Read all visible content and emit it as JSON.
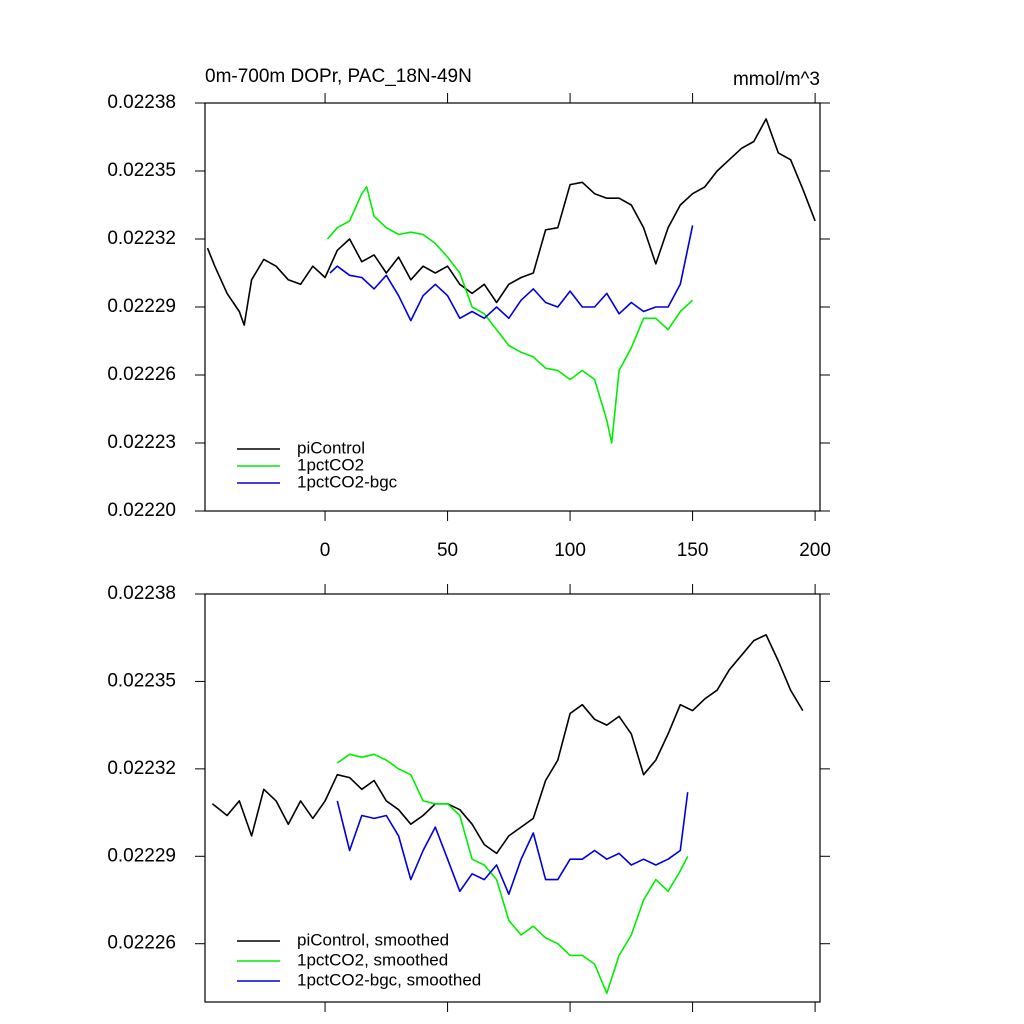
{
  "chart_data": [
    {
      "type": "line",
      "title": "0m-700m DOPr, PAC_18N-49N",
      "units": "mmol/m^3",
      "xlim": [
        -49,
        202
      ],
      "xticks": [
        0,
        50,
        100,
        150,
        200
      ],
      "ylim": [
        0.0222,
        0.02238
      ],
      "yticks": [
        {
          "value": 0.0222,
          "label": "0.02220"
        },
        0.02223,
        0.02226,
        0.02229,
        0.02232,
        0.02235,
        0.02238
      ],
      "legend": "lower left",
      "series": [
        {
          "name": "piControl",
          "color": "#000000",
          "x": [
            -48,
            -45,
            -40,
            -35,
            -33,
            -30,
            -25,
            -20,
            -15,
            -10,
            -5,
            0,
            5,
            10,
            15,
            20,
            25,
            30,
            35,
            40,
            45,
            50,
            55,
            60,
            65,
            70,
            75,
            80,
            85,
            90,
            95,
            100,
            105,
            110,
            115,
            120,
            125,
            130,
            135,
            140,
            145,
            150,
            155,
            160,
            165,
            170,
            175,
            180,
            185,
            190,
            195,
            200
          ],
          "values": [
            0.022316,
            0.022308,
            0.022296,
            0.022288,
            0.022282,
            0.022302,
            0.022311,
            0.022308,
            0.022302,
            0.0223,
            0.022308,
            0.022303,
            0.022315,
            0.02232,
            0.02231,
            0.022313,
            0.022305,
            0.022312,
            0.022302,
            0.022308,
            0.022305,
            0.022308,
            0.0223,
            0.022296,
            0.0223,
            0.022292,
            0.0223,
            0.022303,
            0.022305,
            0.022324,
            0.022325,
            0.022344,
            0.022345,
            0.02234,
            0.022338,
            0.022338,
            0.022335,
            0.022325,
            0.022309,
            0.022325,
            0.022335,
            0.02234,
            0.022343,
            0.02235,
            0.022355,
            0.02236,
            0.022363,
            0.022373,
            0.022358,
            0.022355,
            0.022342,
            0.022328
          ]
        },
        {
          "name": "1pctCO2",
          "color": "#00ee00",
          "x": [
            1,
            5,
            10,
            15,
            17,
            20,
            25,
            30,
            35,
            40,
            45,
            50,
            55,
            60,
            65,
            70,
            75,
            80,
            85,
            90,
            95,
            100,
            105,
            110,
            115,
            117,
            120,
            125,
            130,
            135,
            140,
            145,
            150
          ],
          "values": [
            0.02232,
            0.022325,
            0.022328,
            0.02234,
            0.022343,
            0.02233,
            0.022325,
            0.022322,
            0.022323,
            0.022322,
            0.022318,
            0.022312,
            0.022305,
            0.02229,
            0.022287,
            0.02228,
            0.022273,
            0.02227,
            0.022268,
            0.022263,
            0.022262,
            0.022258,
            0.022262,
            0.022258,
            0.02224,
            0.02223,
            0.022262,
            0.022272,
            0.022285,
            0.022285,
            0.02228,
            0.022288,
            0.022293
          ]
        },
        {
          "name": "1pctCO2-bgc",
          "color": "#0000dd",
          "x": [
            2,
            5,
            10,
            15,
            20,
            25,
            30,
            35,
            40,
            45,
            50,
            55,
            60,
            65,
            70,
            75,
            80,
            85,
            90,
            95,
            100,
            105,
            110,
            115,
            120,
            125,
            130,
            135,
            140,
            145,
            150
          ],
          "values": [
            0.022305,
            0.022308,
            0.022304,
            0.022303,
            0.022298,
            0.022304,
            0.022295,
            0.022284,
            0.022295,
            0.0223,
            0.022295,
            0.022285,
            0.022288,
            0.022285,
            0.02229,
            0.022285,
            0.022293,
            0.022298,
            0.022292,
            0.02229,
            0.022297,
            0.02229,
            0.02229,
            0.022296,
            0.022287,
            0.022292,
            0.022288,
            0.02229,
            0.02229,
            0.0223,
            0.022326
          ]
        }
      ]
    },
    {
      "type": "line",
      "xlim": [
        -49,
        202
      ],
      "ylim": [
        0.02224,
        0.02238
      ],
      "yticks": [
        0.02226,
        0.02229,
        0.02232,
        0.02235,
        0.02238
      ],
      "legend": "lower left",
      "series": [
        {
          "name": "piControl, smoothed",
          "color": "#000000",
          "x": [
            -46,
            -40,
            -35,
            -30,
            -25,
            -20,
            -15,
            -10,
            -5,
            0,
            5,
            10,
            15,
            20,
            25,
            30,
            35,
            40,
            45,
            50,
            55,
            60,
            65,
            70,
            75,
            80,
            85,
            90,
            95,
            100,
            105,
            110,
            115,
            120,
            125,
            130,
            135,
            140,
            145,
            150,
            155,
            160,
            165,
            170,
            175,
            180,
            185,
            190,
            195
          ],
          "values": [
            0.022308,
            0.022304,
            0.022309,
            0.022297,
            0.022313,
            0.022309,
            0.022301,
            0.022309,
            0.022303,
            0.022309,
            0.022318,
            0.022317,
            0.022313,
            0.022316,
            0.022309,
            0.022306,
            0.022301,
            0.022304,
            0.022308,
            0.022308,
            0.022306,
            0.022301,
            0.022294,
            0.022291,
            0.022297,
            0.0223,
            0.022303,
            0.022316,
            0.022323,
            0.022339,
            0.022342,
            0.022337,
            0.022335,
            0.022338,
            0.022332,
            0.022318,
            0.022323,
            0.022332,
            0.022342,
            0.02234,
            0.022344,
            0.022347,
            0.022354,
            0.022359,
            0.022364,
            0.022366,
            0.022357,
            0.022347,
            0.02234
          ]
        },
        {
          "name": "1pctCO2, smoothed",
          "color": "#00ee00",
          "x": [
            5,
            10,
            15,
            20,
            25,
            30,
            35,
            40,
            45,
            50,
            55,
            60,
            65,
            70,
            75,
            80,
            85,
            90,
            95,
            100,
            105,
            110,
            115,
            120,
            125,
            130,
            135,
            140,
            145,
            148
          ],
          "values": [
            0.022322,
            0.022325,
            0.022324,
            0.022325,
            0.022323,
            0.02232,
            0.022318,
            0.022309,
            0.022308,
            0.022308,
            0.022304,
            0.022289,
            0.022287,
            0.022282,
            0.022268,
            0.022263,
            0.022266,
            0.022262,
            0.02226,
            0.022256,
            0.022256,
            0.022253,
            0.022243,
            0.022256,
            0.022263,
            0.022275,
            0.022282,
            0.022278,
            0.022285,
            0.02229
          ]
        },
        {
          "name": "1pctCO2-bgc, smoothed",
          "color": "#0000dd",
          "x": [
            5,
            10,
            15,
            20,
            25,
            30,
            35,
            40,
            45,
            50,
            55,
            60,
            65,
            70,
            75,
            80,
            85,
            90,
            95,
            100,
            105,
            110,
            115,
            120,
            125,
            130,
            135,
            140,
            145,
            148
          ],
          "values": [
            0.022309,
            0.022292,
            0.022304,
            0.022303,
            0.022304,
            0.022297,
            0.022282,
            0.022292,
            0.0223,
            0.022289,
            0.022278,
            0.022284,
            0.022282,
            0.022287,
            0.022277,
            0.022289,
            0.022298,
            0.022282,
            0.022282,
            0.022289,
            0.022289,
            0.022292,
            0.022289,
            0.022291,
            0.022287,
            0.022289,
            0.022287,
            0.022289,
            0.022292,
            0.022312
          ]
        }
      ]
    }
  ]
}
